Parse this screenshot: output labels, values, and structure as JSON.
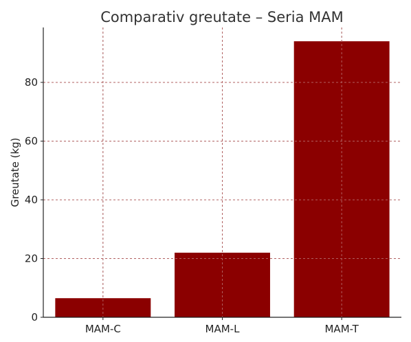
{
  "chart_data": {
    "type": "bar",
    "title": "Comparativ greutate – Seria MAM",
    "xlabel": "",
    "ylabel": "Greutate (kg)",
    "categories": [
      "MAM-C",
      "MAM-L",
      "MAM-T"
    ],
    "values": [
      6.5,
      22,
      94
    ],
    "ylim": [
      0,
      98.7
    ],
    "yticks": [
      0,
      20,
      40,
      60,
      80
    ],
    "bar_color": "#8b0000",
    "grid": true
  }
}
